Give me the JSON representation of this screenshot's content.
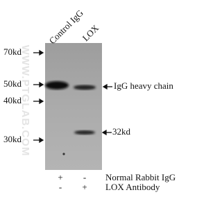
{
  "watermark": "WWW.PTGLAB.COM",
  "lanes": [
    "Control IgG",
    "LOX"
  ],
  "markers": [
    "70kd",
    "50kd",
    "40kd",
    "30kd"
  ],
  "annotations": [
    "IgG heavy chain",
    "32kd"
  ],
  "conditions": [
    {
      "label": "Normal Rabbit IgG",
      "marks": [
        "+",
        "-"
      ]
    },
    {
      "label": "LOX Antibody",
      "marks": [
        "-",
        "+"
      ]
    }
  ]
}
